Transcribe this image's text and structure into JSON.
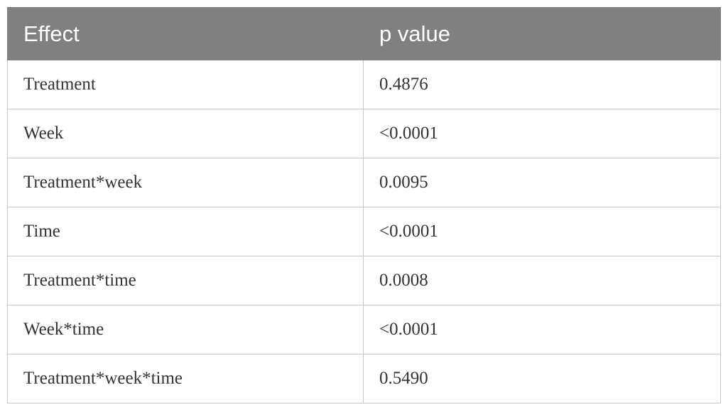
{
  "table": {
    "header": [
      "Effect",
      "p value"
    ],
    "rows": [
      [
        "Treatment",
        "0.4876"
      ],
      [
        "Week",
        "<0.0001"
      ],
      [
        "Treatment*week",
        "0.0095"
      ],
      [
        "Time",
        "<0.0001"
      ],
      [
        "Treatment*time",
        "0.0008"
      ],
      [
        "Week*time",
        "<0.0001"
      ],
      [
        "Treatment*week*time",
        "0.5490"
      ]
    ]
  }
}
